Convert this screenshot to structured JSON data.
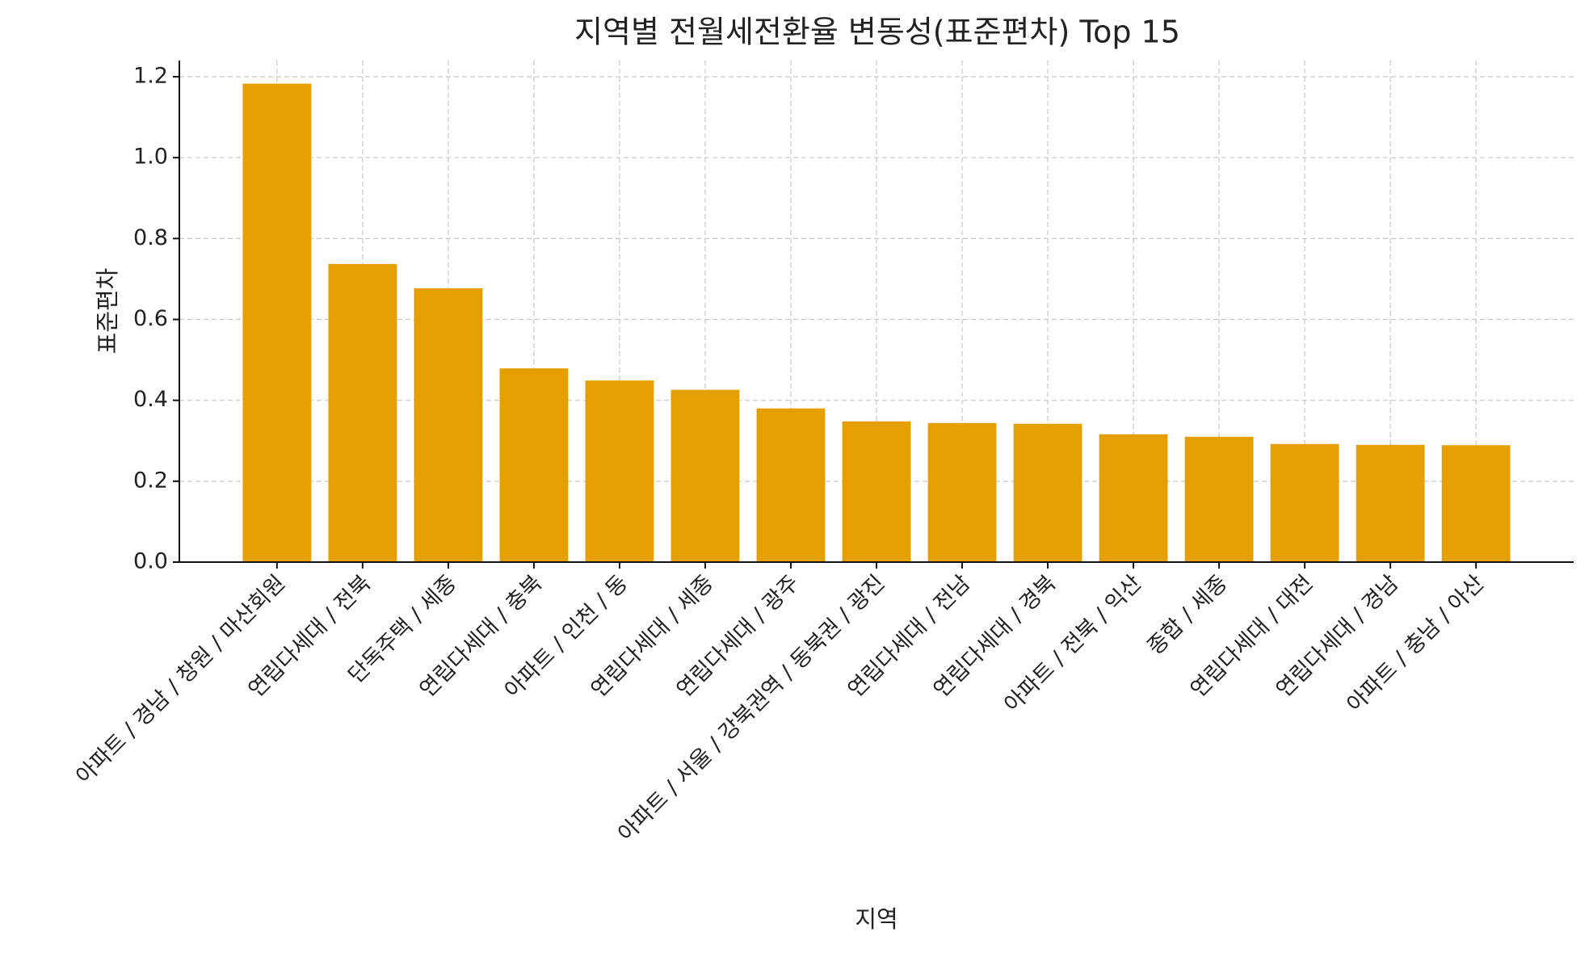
{
  "chart_data": {
    "type": "bar",
    "title": "지역별 전월세전환율 변동성(표준편차) Top 15",
    "x_label": "지역",
    "y_label": "표준편차",
    "categories": [
      "아파트 / 경남 / 창원 / 마산회원",
      "연립다세대 / 전북",
      "단독주택 / 세종",
      "연립다세대 / 충북",
      "아파트 / 인천 / 동",
      "연립다세대 / 세종",
      "연립다세대 / 광주",
      "아파트 / 서울 / 강북권역 / 동북권 / 광진",
      "연립다세대 / 전남",
      "연립다세대 / 경북",
      "아파트 / 전북 / 익산",
      "종합 / 세종",
      "연립다세대 / 대전",
      "연립다세대 / 경남",
      "아파트 / 충남 / 아산"
    ],
    "values": [
      1.183,
      0.737,
      0.677,
      0.479,
      0.449,
      0.426,
      0.38,
      0.348,
      0.344,
      0.342,
      0.316,
      0.31,
      0.292,
      0.29,
      0.289
    ],
    "color": "#e69f00",
    "ylim": [
      0,
      1.24
    ],
    "yticks": [
      {
        "value": 0,
        "label": "0.0"
      },
      {
        "value": 0.2,
        "label": "0.2"
      },
      {
        "value": 0.4,
        "label": "0.4"
      },
      {
        "value": 0.6,
        "label": "0.6"
      },
      {
        "value": 0.8,
        "label": "0.8"
      },
      {
        "value": 1.0,
        "label": "1.0"
      },
      {
        "value": 1.2,
        "label": "1.2"
      }
    ],
    "grid": true
  }
}
